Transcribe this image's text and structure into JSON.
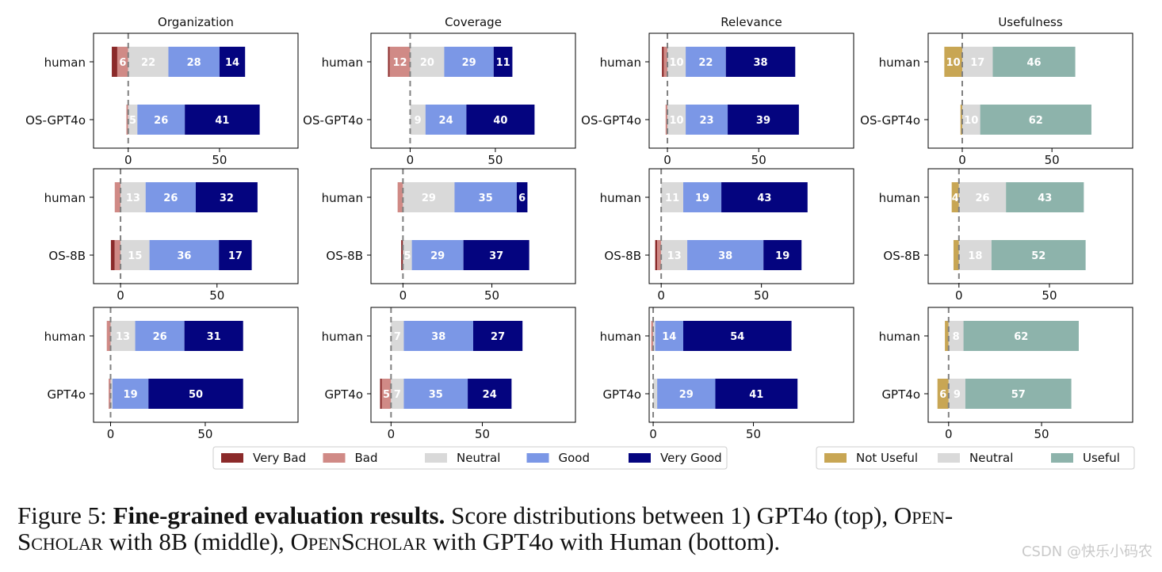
{
  "chart_data": {
    "type": "bar",
    "orientation": "horizontal",
    "stacked": true,
    "columns": [
      "Organization",
      "Coverage",
      "Relevance",
      "Usefulness"
    ],
    "five_point_categories": [
      "Very Bad",
      "Bad",
      "Neutral",
      "Good",
      "Very Good"
    ],
    "usefulness_categories": [
      "Not Useful",
      "Neutral",
      "Useful"
    ],
    "colors": {
      "Very Bad": "#8b2a2a",
      "Bad": "#d08a86",
      "Neutral": "#d9d9d9",
      "Good": "#7b97e6",
      "Very Good": "#04047f",
      "Not Useful": "#c8a654",
      "Useful": "#8db3ab"
    },
    "legends": {
      "five_point": [
        "Very Bad",
        "Bad",
        "Neutral",
        "Good",
        "Very Good"
      ],
      "usefulness": [
        "Not Useful",
        "Neutral",
        "Useful"
      ]
    },
    "rows": [
      {
        "row_label": "GPT4o (top)",
        "panels": [
          {
            "column": "Organization",
            "xticks": [
              0,
              50
            ],
            "xlim": [
              -19,
              93
            ],
            "bars": [
              {
                "label": "human",
                "values": [
                  3,
                  6,
                  22,
                  28,
                  14
                ]
              },
              {
                "label": "OS-GPT4o",
                "values": [
                  0,
                  1,
                  5,
                  26,
                  41
                ]
              }
            ]
          },
          {
            "column": "Coverage",
            "xticks": [
              0,
              50
            ],
            "xlim": [
              -23,
              97
            ],
            "bars": [
              {
                "label": "human",
                "values": [
                  1,
                  12,
                  20,
                  29,
                  11
                ]
              },
              {
                "label": "OS-GPT4o",
                "values": [
                  0,
                  0,
                  9,
                  24,
                  40
                ]
              }
            ]
          },
          {
            "column": "Relevance",
            "xticks": [
              0,
              50
            ],
            "xlim": [
              -10,
              102
            ],
            "bars": [
              {
                "label": "human",
                "values": [
                  1,
                  2,
                  10,
                  22,
                  38
                ]
              },
              {
                "label": "OS-GPT4o",
                "values": [
                  0,
                  1,
                  10,
                  23,
                  39
                ]
              }
            ]
          },
          {
            "column": "Usefulness",
            "xticks": [
              0,
              50
            ],
            "xlim": [
              -19,
              95
            ],
            "bars": [
              {
                "label": "human",
                "values": [
                  10,
                  17,
                  46
                ]
              },
              {
                "label": "OS-GPT4o",
                "values": [
                  1,
                  10,
                  62
                ]
              }
            ]
          }
        ]
      },
      {
        "row_label": "OpenScholar with 8B (middle)",
        "panels": [
          {
            "column": "Organization",
            "xticks": [
              0,
              50
            ],
            "xlim": [
              -14,
              92
            ],
            "bars": [
              {
                "label": "human",
                "values": [
                  0,
                  3,
                  13,
                  26,
                  32
                ]
              },
              {
                "label": "OS-8B",
                "values": [
                  2,
                  3,
                  15,
                  36,
                  17
                ]
              }
            ]
          },
          {
            "column": "Coverage",
            "xticks": [
              0,
              50
            ],
            "xlim": [
              -18,
              97
            ],
            "bars": [
              {
                "label": "human",
                "values": [
                  0,
                  3,
                  29,
                  35,
                  6
                ]
              },
              {
                "label": "OS-8B",
                "values": [
                  1,
                  0,
                  5,
                  29,
                  37
                ]
              }
            ]
          },
          {
            "column": "Relevance",
            "xticks": [
              0,
              50
            ],
            "xlim": [
              -6,
              96
            ],
            "bars": [
              {
                "label": "human",
                "values": [
                  0,
                  0,
                  11,
                  19,
                  43
                ]
              },
              {
                "label": "OS-8B",
                "values": [
                  1,
                  2,
                  13,
                  38,
                  19
                ]
              }
            ]
          },
          {
            "column": "Usefulness",
            "xticks": [
              0,
              50
            ],
            "xlim": [
              -17,
              96
            ],
            "bars": [
              {
                "label": "human",
                "values": [
                  4,
                  26,
                  43
                ]
              },
              {
                "label": "OS-8B",
                "values": [
                  3,
                  18,
                  52
                ]
              }
            ]
          }
        ]
      },
      {
        "row_label": "OpenScholar with GPT4o with Human (bottom)",
        "panels": [
          {
            "column": "Organization",
            "xticks": [
              0,
              50
            ],
            "xlim": [
              -9,
              99
            ],
            "bars": [
              {
                "label": "human",
                "values": [
                  0,
                  2,
                  13,
                  26,
                  31
                ]
              },
              {
                "label": "GPT4o",
                "values": [
                  0,
                  1,
                  1,
                  19,
                  50
                ]
              }
            ]
          },
          {
            "column": "Coverage",
            "xticks": [
              0,
              50
            ],
            "xlim": [
              -11,
              101
            ],
            "bars": [
              {
                "label": "human",
                "values": [
                  0,
                  0,
                  7,
                  38,
                  27
                ]
              },
              {
                "label": "GPT4o",
                "values": [
                  1,
                  5,
                  7,
                  35,
                  24
                ]
              }
            ]
          },
          {
            "column": "Relevance",
            "xticks": [
              0,
              50
            ],
            "xlim": [
              -2,
              100
            ],
            "bars": [
              {
                "label": "human",
                "values": [
                  0,
                  1,
                  1,
                  14,
                  54
                ]
              },
              {
                "label": "GPT4o",
                "values": [
                  0,
                  0,
                  2,
                  29,
                  41
                ]
              }
            ]
          },
          {
            "column": "Usefulness",
            "xticks": [
              0,
              50
            ],
            "xlim": [
              -11,
              99
            ],
            "bars": [
              {
                "label": "human",
                "values": [
                  2,
                  8,
                  62
                ]
              },
              {
                "label": "GPT4o",
                "values": [
                  6,
                  9,
                  57
                ]
              }
            ]
          }
        ]
      }
    ]
  },
  "caption": {
    "prefix": "Figure 5: ",
    "bold": "Fine-grained evaluation results.",
    "p1": "  Score distributions between 1) GPT4o (top), ",
    "sc1": "Open-",
    "sc2": "Scholar",
    "p2": " with 8B (middle), ",
    "sc3": "OpenScholar",
    "p3": " with GPT4o with Human (bottom)."
  },
  "watermark": "CSDN @快乐小码农"
}
